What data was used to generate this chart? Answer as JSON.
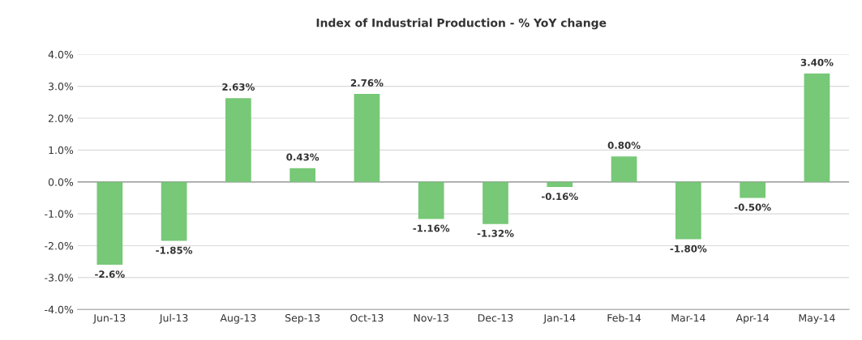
{
  "chart_data": {
    "type": "bar",
    "title": "Index of Industrial Production - % YoY change",
    "categories": [
      "Jun-13",
      "Jul-13",
      "Aug-13",
      "Sep-13",
      "Oct-13",
      "Nov-13",
      "Dec-13",
      "Jan-14",
      "Feb-14",
      "Mar-14",
      "Apr-14",
      "May-14"
    ],
    "values": [
      -2.6,
      -1.85,
      2.63,
      0.43,
      2.76,
      -1.16,
      -1.32,
      -0.16,
      0.8,
      -1.8,
      -0.5,
      3.4
    ],
    "value_labels": [
      "-2.6%",
      "-1.85%",
      "2.63%",
      "0.43%",
      "2.76%",
      "-1.16%",
      "-1.32%",
      "-0.16%",
      "0.80%",
      "-1.80%",
      "-0.50%",
      "3.40%"
    ],
    "color": "#77c877",
    "ylim": [
      -4,
      4
    ],
    "yticks": [
      {
        "value": -4,
        "label": "-4.0%"
      },
      {
        "value": -3,
        "label": "-3.0%"
      },
      {
        "value": -2,
        "label": "-2.0%"
      },
      {
        "value": -1,
        "label": "-1.0%"
      },
      {
        "value": 0,
        "label": "0.0%"
      },
      {
        "value": 1,
        "label": "1.0%"
      },
      {
        "value": 2,
        "label": "2.0%"
      },
      {
        "value": 3,
        "label": "3.0%"
      },
      {
        "value": 4,
        "label": "4.0%"
      }
    ],
    "grid": "y"
  }
}
